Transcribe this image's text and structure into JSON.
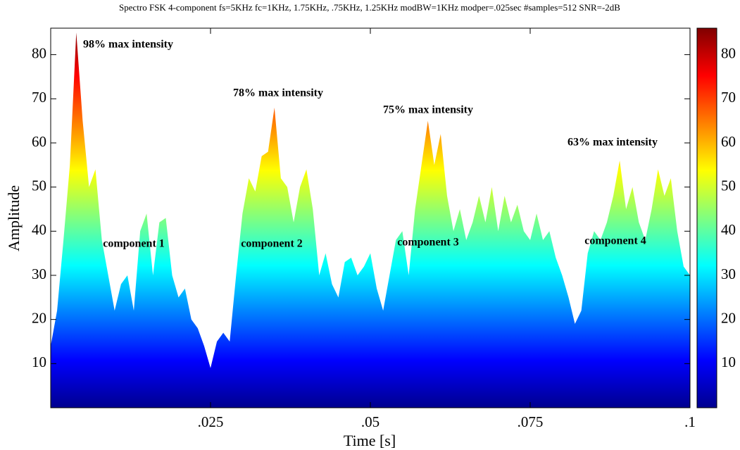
{
  "chart_data": {
    "type": "area",
    "title": "Spectro FSK 4-component fs=5KHz fc=1KHz, 1.75KHz, .75KHz, 1.25KHz modBW=1KHz modper=.025sec #samples=512 SNR=-2dB",
    "xlabel": "Time [s]",
    "ylabel": "Amplitude",
    "x": [
      0,
      0.001,
      0.002,
      0.003,
      0.004,
      0.005,
      0.006,
      0.007,
      0.008,
      0.009,
      0.01,
      0.011,
      0.012,
      0.013,
      0.014,
      0.015,
      0.016,
      0.017,
      0.018,
      0.019,
      0.02,
      0.021,
      0.022,
      0.023,
      0.024,
      0.025,
      0.026,
      0.027,
      0.028,
      0.029,
      0.03,
      0.031,
      0.032,
      0.033,
      0.034,
      0.035,
      0.036,
      0.037,
      0.038,
      0.039,
      0.04,
      0.041,
      0.042,
      0.043,
      0.044,
      0.045,
      0.046,
      0.047,
      0.048,
      0.049,
      0.05,
      0.051,
      0.052,
      0.053,
      0.054,
      0.055,
      0.056,
      0.057,
      0.058,
      0.059,
      0.06,
      0.061,
      0.062,
      0.063,
      0.064,
      0.065,
      0.066,
      0.067,
      0.068,
      0.069,
      0.07,
      0.071,
      0.072,
      0.073,
      0.074,
      0.075,
      0.076,
      0.077,
      0.078,
      0.079,
      0.08,
      0.081,
      0.082,
      0.083,
      0.084,
      0.085,
      0.086,
      0.087,
      0.088,
      0.089,
      0.09,
      0.091,
      0.092,
      0.093,
      0.094,
      0.095,
      0.096,
      0.097,
      0.098,
      0.099,
      0.1
    ],
    "values": [
      14,
      22,
      38,
      55,
      85,
      65,
      50,
      54,
      38,
      30,
      22,
      28,
      30,
      22,
      40,
      44,
      30,
      42,
      43,
      30,
      25,
      27,
      20,
      18,
      14,
      9,
      15,
      17,
      15,
      30,
      44,
      52,
      49,
      57,
      58,
      68,
      52,
      50,
      42,
      50,
      54,
      45,
      30,
      35,
      28,
      25,
      33,
      34,
      30,
      32,
      35,
      27,
      22,
      30,
      38,
      40,
      30,
      45,
      55,
      65,
      55,
      62,
      48,
      40,
      45,
      38,
      42,
      48,
      42,
      50,
      40,
      48,
      42,
      46,
      40,
      38,
      44,
      38,
      40,
      34,
      30,
      25,
      19,
      22,
      35,
      40,
      38,
      42,
      48,
      56,
      45,
      50,
      42,
      38,
      45,
      54,
      48,
      52,
      40,
      32,
      30
    ],
    "xlim": [
      0,
      0.1
    ],
    "xticks": [
      {
        "value": 0.025,
        "label": ".025"
      },
      {
        "value": 0.05,
        "label": ".05"
      },
      {
        "value": 0.075,
        "label": ".075"
      },
      {
        "value": 0.1,
        "label": ".1"
      }
    ],
    "ylim": [
      0,
      86
    ],
    "yticks": [
      10,
      20,
      30,
      40,
      50,
      60,
      70,
      80
    ],
    "colormap": [
      "#00008f",
      "#0000ff",
      "#00ffff",
      "#ffff00",
      "#ff0000",
      "#800000"
    ],
    "annotations": [
      "98% max intensity",
      "78% max intensity",
      "75% max intensity",
      "63% max intensity",
      "component 1",
      "component 2",
      "component 3",
      "component 4"
    ]
  }
}
